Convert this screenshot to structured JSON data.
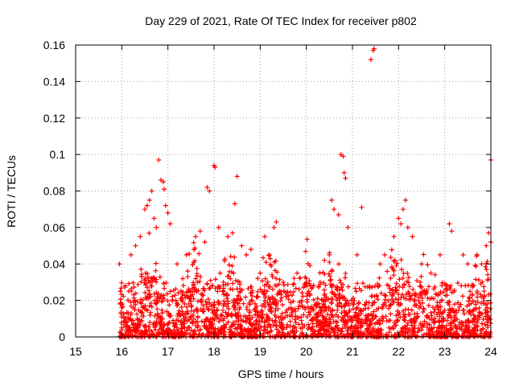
{
  "chart_data": {
    "type": "scatter",
    "title": "Day 229 of 2021, Rate Of TEC Index for receiver p802",
    "xlabel": "GPS time / hours",
    "ylabel": "ROTI / TECUs",
    "xlim": [
      15,
      24
    ],
    "ylim": [
      0,
      0.16
    ],
    "xticks": [
      15,
      16,
      17,
      18,
      19,
      20,
      21,
      22,
      23,
      24
    ],
    "xtick_labels": [
      "15",
      "16",
      "17",
      "18",
      "19",
      "20",
      "21",
      "22",
      "23",
      "24"
    ],
    "yticks": [
      0,
      0.02,
      0.04,
      0.06,
      0.08,
      0.1,
      0.12,
      0.14,
      0.16
    ],
    "ytick_labels": [
      "0",
      "0.02",
      "0.04",
      "0.06",
      "0.08",
      "0.1",
      "0.12",
      "0.14",
      "0.16"
    ],
    "grid": true,
    "marker": "+",
    "series": [
      {
        "name": "ROTI",
        "color": "#ff0000",
        "points": [
          [
            15.95,
            0.04
          ],
          [
            15.97,
            0.018
          ],
          [
            16.0,
            0.016
          ],
          [
            16.0,
            0.005
          ],
          [
            16.2,
            0.045
          ],
          [
            16.3,
            0.05
          ],
          [
            16.4,
            0.055
          ],
          [
            16.5,
            0.07
          ],
          [
            16.55,
            0.072
          ],
          [
            16.6,
            0.075
          ],
          [
            16.65,
            0.08
          ],
          [
            16.7,
            0.065
          ],
          [
            16.75,
            0.06
          ],
          [
            16.8,
            0.097
          ],
          [
            16.85,
            0.086
          ],
          [
            16.9,
            0.085
          ],
          [
            16.92,
            0.081
          ],
          [
            16.95,
            0.072
          ],
          [
            17.0,
            0.068
          ],
          [
            17.05,
            0.062
          ],
          [
            17.2,
            0.04
          ],
          [
            17.4,
            0.045
          ],
          [
            17.6,
            0.055
          ],
          [
            17.7,
            0.058
          ],
          [
            17.8,
            0.052
          ],
          [
            17.85,
            0.082
          ],
          [
            17.9,
            0.08
          ],
          [
            18.0,
            0.094
          ],
          [
            18.02,
            0.093
          ],
          [
            18.1,
            0.06
          ],
          [
            18.3,
            0.055
          ],
          [
            18.4,
            0.057
          ],
          [
            18.45,
            0.073
          ],
          [
            18.5,
            0.088
          ],
          [
            18.6,
            0.05
          ],
          [
            18.7,
            0.045
          ],
          [
            18.8,
            0.048
          ],
          [
            19.0,
            0.035
          ],
          [
            19.1,
            0.055
          ],
          [
            19.2,
            0.045
          ],
          [
            19.3,
            0.06
          ],
          [
            19.35,
            0.063
          ],
          [
            19.5,
            0.03
          ],
          [
            19.8,
            0.035
          ],
          [
            20.0,
            0.032
          ],
          [
            20.3,
            0.03
          ],
          [
            20.5,
            0.045
          ],
          [
            20.55,
            0.075
          ],
          [
            20.6,
            0.07
          ],
          [
            20.7,
            0.067
          ],
          [
            20.75,
            0.1
          ],
          [
            20.8,
            0.099
          ],
          [
            20.82,
            0.09
          ],
          [
            20.85,
            0.087
          ],
          [
            20.9,
            0.06
          ],
          [
            21.1,
            0.045
          ],
          [
            21.2,
            0.071
          ],
          [
            21.4,
            0.152
          ],
          [
            21.45,
            0.157
          ],
          [
            21.47,
            0.158
          ],
          [
            21.6,
            0.04
          ],
          [
            21.7,
            0.045
          ],
          [
            21.9,
            0.055
          ],
          [
            22.0,
            0.065
          ],
          [
            22.05,
            0.062
          ],
          [
            22.1,
            0.07
          ],
          [
            22.15,
            0.075
          ],
          [
            22.2,
            0.06
          ],
          [
            22.3,
            0.055
          ],
          [
            22.5,
            0.04
          ],
          [
            22.7,
            0.035
          ],
          [
            22.9,
            0.045
          ],
          [
            23.1,
            0.062
          ],
          [
            23.15,
            0.058
          ],
          [
            23.4,
            0.045
          ],
          [
            23.5,
            0.04
          ],
          [
            23.7,
            0.045
          ],
          [
            23.8,
            0.04
          ],
          [
            23.9,
            0.05
          ],
          [
            23.95,
            0.057
          ],
          [
            24.0,
            0.097
          ],
          [
            24.0,
            0.052
          ]
        ]
      }
    ],
    "dense_band": {
      "description": "dense cloud of points near the baseline",
      "x_range": [
        15.95,
        24.0
      ],
      "y_range": [
        0.0,
        0.03
      ]
    }
  }
}
